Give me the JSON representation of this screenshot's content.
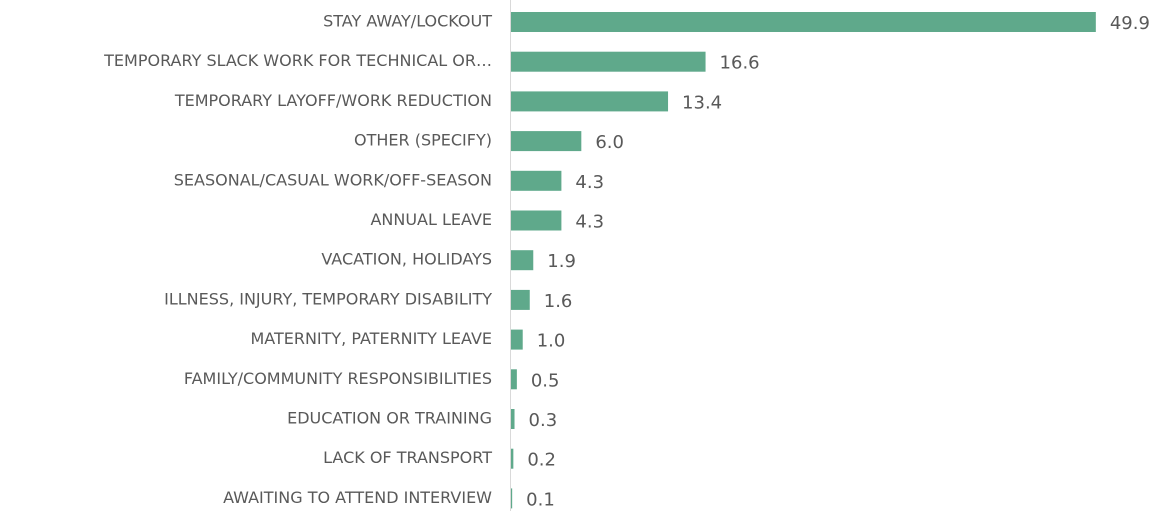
{
  "chart_data": {
    "type": "hbar",
    "categories": [
      "STAY AWAY/LOCKOUT",
      "TEMPORARY SLACK WORK FOR TECHNICAL OR…",
      "TEMPORARY LAYOFF/WORK REDUCTION",
      "OTHER (SPECIFY)",
      "SEASONAL/CASUAL WORK/OFF-SEASON",
      "ANNUAL LEAVE",
      "VACATION, HOLIDAYS",
      "ILLNESS, INJURY, TEMPORARY DISABILITY",
      "MATERNITY, PATERNITY LEAVE",
      "FAMILY/COMMUNITY RESPONSIBILITIES",
      "EDUCATION OR TRAINING",
      "LACK OF TRANSPORT",
      "AWAITING TO ATTEND INTERVIEW"
    ],
    "values": [
      49.9,
      16.6,
      13.4,
      6,
      4.3,
      4.3,
      1.9,
      1.6,
      1,
      0.5,
      0.3,
      0.2,
      0.1
    ],
    "value_labels": [
      "49.9",
      "16.6",
      "13.4",
      "6.0",
      "4.3",
      "4.3",
      "1.9",
      "1.6",
      "1.0",
      "0.5",
      "0.3",
      "0.2",
      "0.1"
    ],
    "color": "#5fa98b"
  }
}
